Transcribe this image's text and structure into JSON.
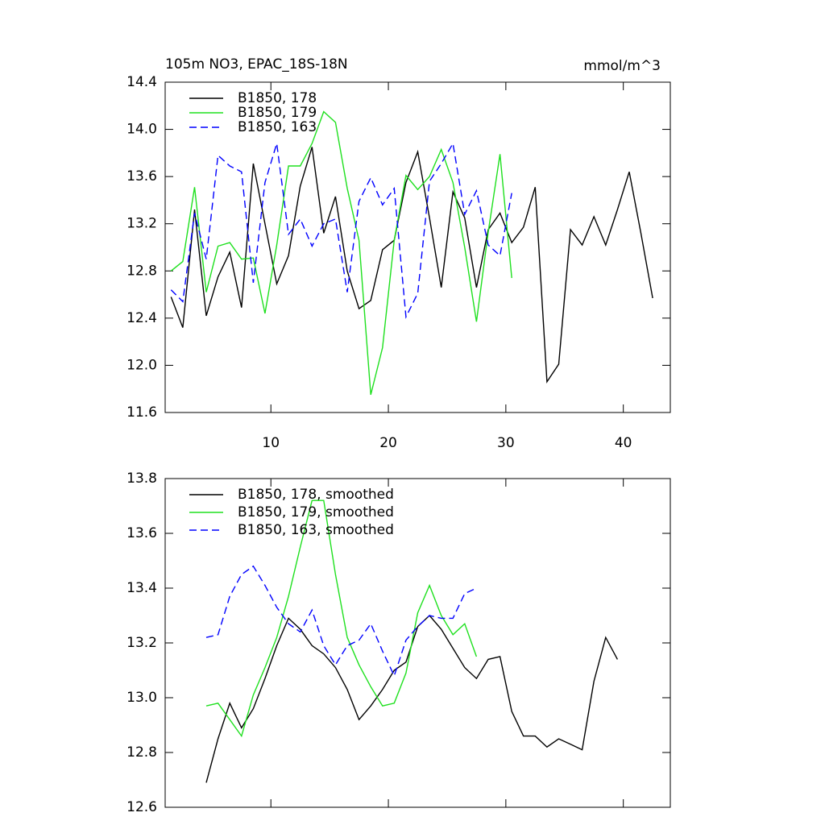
{
  "chart_data": [
    {
      "type": "line",
      "title": "105m NO3, EPAC_18S-18N",
      "subtitle": "mmol/m^3",
      "xlim": [
        1,
        44
      ],
      "xticks": [
        10,
        20,
        30,
        40
      ],
      "ylim": [
        11.6,
        14.4
      ],
      "yticks": [
        11.6,
        {
          "value": 12.0,
          "label": "12.0"
        },
        12.4,
        12.8,
        13.2,
        13.6,
        {
          "value": 14.0,
          "label": "14.0"
        },
        14.4
      ],
      "legend": "upper left",
      "series": [
        {
          "name": "B1850, 178",
          "color": "#000000",
          "dash": false,
          "x": [
            1.5,
            2.5,
            3.5,
            4.5,
            5.5,
            6.5,
            7.5,
            8.5,
            9.5,
            10.5,
            11.5,
            12.5,
            13.5,
            14.5,
            15.5,
            16.5,
            17.5,
            18.5,
            19.5,
            20.5,
            21.5,
            22.5,
            23.5,
            24.5,
            25.5,
            26.5,
            27.5,
            28.5,
            29.5,
            30.5,
            31.5,
            32.5,
            33.5,
            34.5,
            35.5,
            36.5,
            37.5,
            38.5,
            39.5,
            40.5,
            41.5,
            42.5
          ],
          "values": [
            12.58,
            12.32,
            13.32,
            12.42,
            12.75,
            12.96,
            12.49,
            13.71,
            13.2,
            12.69,
            12.93,
            13.52,
            13.85,
            13.12,
            13.43,
            12.8,
            12.48,
            12.55,
            12.98,
            13.06,
            13.55,
            13.81,
            13.25,
            12.66,
            13.47,
            13.25,
            12.66,
            13.15,
            13.29,
            13.04,
            13.17,
            13.51,
            11.86,
            12.01,
            13.15,
            13.02,
            13.26,
            13.02,
            13.32,
            13.64,
            13.12,
            12.57
          ]
        },
        {
          "name": "B1850, 179",
          "color": "#1ee01e",
          "dash": false,
          "x": [
            1.5,
            2.5,
            3.5,
            4.5,
            5.5,
            6.5,
            7.5,
            8.5,
            9.5,
            10.5,
            11.5,
            12.5,
            13.5,
            14.5,
            15.5,
            16.5,
            17.5,
            18.5,
            19.5,
            20.5,
            21.5,
            22.5,
            23.5,
            24.5,
            25.5,
            26.5,
            27.5,
            28.5,
            29.5,
            30.5
          ],
          "values": [
            12.8,
            12.88,
            13.51,
            12.62,
            13.01,
            13.04,
            12.9,
            12.91,
            12.44,
            13.02,
            13.69,
            13.69,
            13.88,
            14.15,
            14.06,
            13.5,
            13.06,
            11.75,
            12.15,
            13.06,
            13.61,
            13.49,
            13.6,
            13.83,
            13.55,
            13.0,
            12.37,
            13.13,
            13.79,
            12.74
          ]
        },
        {
          "name": "B1850, 163",
          "color": "#0000ff",
          "dash": true,
          "x": [
            1.5,
            2.5,
            3.5,
            4.5,
            5.5,
            6.5,
            7.5,
            8.5,
            9.5,
            10.5,
            11.5,
            12.5,
            13.5,
            14.5,
            15.5,
            16.5,
            17.5,
            18.5,
            19.5,
            20.5,
            21.5,
            22.5,
            23.5,
            24.5,
            25.5,
            26.5,
            27.5,
            28.5,
            29.5,
            30.5
          ],
          "values": [
            12.64,
            12.54,
            13.29,
            12.9,
            13.78,
            13.69,
            13.64,
            12.7,
            13.55,
            13.88,
            13.11,
            13.24,
            13.01,
            13.2,
            13.24,
            12.62,
            13.39,
            13.59,
            13.36,
            13.5,
            12.41,
            12.61,
            13.56,
            13.71,
            13.88,
            13.28,
            13.48,
            13.02,
            12.93,
            13.46
          ]
        }
      ]
    },
    {
      "type": "line",
      "xlim": [
        1,
        44
      ],
      "xticks": [
        10,
        20,
        30,
        40
      ],
      "ylim": [
        12.6,
        13.8
      ],
      "yticks": [
        12.6,
        12.8,
        {
          "value": 13.0,
          "label": "13.0"
        },
        13.2,
        13.4,
        13.6,
        13.8
      ],
      "legend": "upper left",
      "series": [
        {
          "name": "B1850, 178, smoothed",
          "color": "#000000",
          "dash": false,
          "x": [
            4.5,
            5.5,
            6.5,
            7.5,
            8.5,
            9.5,
            10.5,
            11.5,
            12.5,
            13.5,
            14.5,
            15.5,
            16.5,
            17.5,
            18.5,
            19.5,
            20.5,
            21.5,
            22.5,
            23.5,
            24.5,
            25.5,
            26.5,
            27.5,
            28.5,
            29.5,
            30.5,
            31.5,
            32.5,
            33.5,
            34.5,
            35.5,
            36.5,
            37.5,
            38.5,
            39.5
          ],
          "values": [
            12.69,
            12.85,
            12.98,
            12.89,
            12.96,
            13.07,
            13.19,
            13.29,
            13.25,
            13.19,
            13.16,
            13.11,
            13.03,
            12.92,
            12.97,
            13.03,
            13.1,
            13.13,
            13.26,
            13.3,
            13.25,
            13.18,
            13.11,
            13.07,
            13.14,
            13.15,
            12.95,
            12.86,
            12.86,
            12.82,
            12.85,
            12.83,
            12.81,
            13.06,
            13.22,
            13.14
          ]
        },
        {
          "name": "B1850, 179, smoothed",
          "color": "#1ee01e",
          "dash": false,
          "x": [
            4.5,
            5.5,
            6.5,
            7.5,
            8.5,
            9.5,
            10.5,
            11.5,
            12.5,
            13.5,
            14.5,
            15.5,
            16.5,
            17.5,
            18.5,
            19.5,
            20.5,
            21.5,
            22.5,
            23.5,
            24.5,
            25.5,
            26.5,
            27.5
          ],
          "values": [
            12.97,
            12.98,
            12.92,
            12.86,
            13.01,
            13.11,
            13.22,
            13.37,
            13.55,
            13.72,
            13.72,
            13.45,
            13.22,
            13.12,
            13.04,
            12.97,
            12.98,
            13.09,
            13.31,
            13.41,
            13.3,
            13.23,
            13.27,
            13.15
          ]
        },
        {
          "name": "B1850, 163, smoothed",
          "color": "#0000ff",
          "dash": true,
          "x": [
            4.5,
            5.5,
            6.5,
            7.5,
            8.5,
            9.5,
            10.5,
            11.5,
            12.5,
            13.5,
            14.5,
            15.5,
            16.5,
            17.5,
            18.5,
            19.5,
            20.5,
            21.5,
            22.5,
            23.5,
            24.5,
            25.5,
            26.5,
            27.5
          ],
          "values": [
            13.22,
            13.23,
            13.37,
            13.45,
            13.48,
            13.41,
            13.33,
            13.27,
            13.24,
            13.32,
            13.19,
            13.12,
            13.19,
            13.21,
            13.27,
            13.17,
            13.08,
            13.21,
            13.26,
            13.3,
            13.29,
            13.29,
            13.38,
            13.4
          ]
        }
      ]
    }
  ]
}
